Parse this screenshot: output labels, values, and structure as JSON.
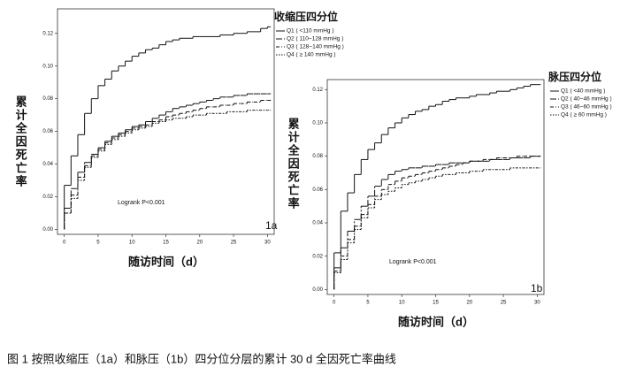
{
  "caption": "图 1 按照收缩压（1a）和脉压（1b）四分位分层的累计 30 d 全因死亡率曲线",
  "chart_data": [
    {
      "type": "step",
      "legend_title": "收缩压四分位",
      "ylabel": "累计全因死亡率",
      "xlabel": "随访时间（d）",
      "annotation": "Logrank P<0.001",
      "panel_label": "1a",
      "xlim": [
        -1,
        31
      ],
      "ylim": [
        -0.003,
        0.135
      ],
      "xticks": [
        0,
        5,
        10,
        15,
        20,
        25,
        30
      ],
      "yticks": [
        {
          "value": 0,
          "label": "0.00"
        },
        0.02,
        0.04,
        0.06,
        0.08,
        {
          "value": 0.1,
          "label": "0.10"
        },
        0.12
      ],
      "x": [
        0,
        1,
        2,
        3,
        4,
        5,
        6,
        7,
        8,
        9,
        10,
        11,
        12,
        13,
        14,
        15,
        16,
        17,
        18,
        19,
        20,
        21,
        22,
        23,
        24,
        25,
        26,
        27,
        28,
        29,
        30
      ],
      "series": [
        {
          "name": "Q1 ( <110 mmHg )",
          "color": "#111111",
          "dash": "none",
          "values": [
            0.027,
            0.045,
            0.058,
            0.071,
            0.08,
            0.088,
            0.092,
            0.097,
            0.1,
            0.103,
            0.106,
            0.108,
            0.11,
            0.111,
            0.113,
            0.115,
            0.116,
            0.117,
            0.117,
            0.118,
            0.118,
            0.118,
            0.118,
            0.119,
            0.119,
            0.12,
            0.12,
            0.121,
            0.121,
            0.123,
            0.124
          ]
        },
        {
          "name": "Q2 ( 110~128 mmHg )",
          "color": "#111111",
          "dash": "7 2 2 2",
          "values": [
            0.013,
            0.025,
            0.035,
            0.041,
            0.046,
            0.05,
            0.054,
            0.057,
            0.059,
            0.061,
            0.063,
            0.064,
            0.066,
            0.068,
            0.07,
            0.072,
            0.074,
            0.075,
            0.076,
            0.077,
            0.078,
            0.079,
            0.08,
            0.081,
            0.081,
            0.082,
            0.082,
            0.083,
            0.083,
            0.083,
            0.083
          ]
        },
        {
          "name": "Q3 ( 128~140 mmHg )",
          "color": "#111111",
          "dash": "4 2 1 2",
          "values": [
            0.01,
            0.021,
            0.032,
            0.039,
            0.045,
            0.049,
            0.053,
            0.056,
            0.058,
            0.06,
            0.062,
            0.063,
            0.064,
            0.066,
            0.067,
            0.069,
            0.07,
            0.071,
            0.072,
            0.073,
            0.074,
            0.075,
            0.075,
            0.076,
            0.076,
            0.077,
            0.077,
            0.078,
            0.078,
            0.079,
            0.079
          ]
        },
        {
          "name": "Q4 ( ≥ 140 mmHg )",
          "color": "#111111",
          "dash": "1.5 1.5",
          "values": [
            0.01,
            0.019,
            0.03,
            0.038,
            0.044,
            0.048,
            0.052,
            0.055,
            0.057,
            0.059,
            0.061,
            0.062,
            0.063,
            0.065,
            0.066,
            0.067,
            0.068,
            0.068,
            0.069,
            0.07,
            0.07,
            0.071,
            0.071,
            0.071,
            0.072,
            0.072,
            0.072,
            0.073,
            0.073,
            0.073,
            0.073
          ]
        }
      ]
    },
    {
      "type": "step",
      "legend_title": "脉压四分位",
      "ylabel": "累计全因死亡率",
      "xlabel": "随访时间（d）",
      "annotation": "Logrank P<0.001",
      "panel_label": "1b",
      "xlim": [
        -1,
        31
      ],
      "ylim": [
        -0.003,
        0.126
      ],
      "xticks": [
        0,
        5,
        10,
        15,
        20,
        25,
        30
      ],
      "yticks": [
        {
          "value": 0,
          "label": "0.00"
        },
        0.02,
        0.04,
        0.06,
        0.08,
        {
          "value": 0.1,
          "label": "0.10"
        },
        0.12
      ],
      "x": [
        0,
        1,
        2,
        3,
        4,
        5,
        6,
        7,
        8,
        9,
        10,
        11,
        12,
        13,
        14,
        15,
        16,
        17,
        18,
        19,
        20,
        21,
        22,
        23,
        24,
        25,
        26,
        27,
        28,
        29,
        30
      ],
      "series": [
        {
          "name": "Q1 ( <40 mmHg )",
          "color": "#111111",
          "dash": "none",
          "values": [
            0.022,
            0.047,
            0.058,
            0.069,
            0.078,
            0.084,
            0.088,
            0.093,
            0.097,
            0.1,
            0.103,
            0.105,
            0.107,
            0.108,
            0.11,
            0.111,
            0.113,
            0.114,
            0.115,
            0.115,
            0.116,
            0.117,
            0.117,
            0.118,
            0.119,
            0.119,
            0.12,
            0.121,
            0.122,
            0.123,
            0.123
          ]
        },
        {
          "name": "Q2 ( 40~46 mmHg )",
          "color": "#111111",
          "dash": "7 2 2 2",
          "values": [
            0.013,
            0.025,
            0.035,
            0.042,
            0.05,
            0.056,
            0.062,
            0.066,
            0.069,
            0.071,
            0.072,
            0.073,
            0.073,
            0.074,
            0.074,
            0.075,
            0.075,
            0.076,
            0.076,
            0.076,
            0.077,
            0.077,
            0.077,
            0.078,
            0.078,
            0.078,
            0.079,
            0.079,
            0.079,
            0.08,
            0.08
          ]
        },
        {
          "name": "Q3 ( 46~60 mmHg )",
          "color": "#111111",
          "dash": "4 2 1 2",
          "values": [
            0.011,
            0.02,
            0.03,
            0.038,
            0.045,
            0.051,
            0.056,
            0.06,
            0.063,
            0.065,
            0.067,
            0.068,
            0.069,
            0.07,
            0.071,
            0.072,
            0.073,
            0.074,
            0.075,
            0.076,
            0.077,
            0.077,
            0.078,
            0.078,
            0.079,
            0.079,
            0.079,
            0.08,
            0.08,
            0.08,
            0.08
          ]
        },
        {
          "name": "Q4 ( ≥ 60 mmHg )",
          "color": "#111111",
          "dash": "1.5 1.5",
          "values": [
            0.01,
            0.018,
            0.028,
            0.036,
            0.043,
            0.049,
            0.054,
            0.057,
            0.059,
            0.061,
            0.063,
            0.064,
            0.065,
            0.066,
            0.067,
            0.068,
            0.069,
            0.069,
            0.07,
            0.07,
            0.071,
            0.071,
            0.072,
            0.072,
            0.072,
            0.072,
            0.073,
            0.073,
            0.073,
            0.073,
            0.073
          ]
        }
      ]
    }
  ]
}
